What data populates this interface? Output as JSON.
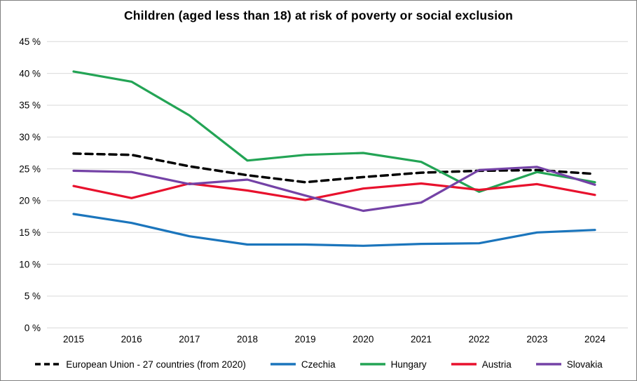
{
  "chart_data": {
    "type": "line",
    "title": "Children (aged less than 18) at risk of poverty or social exclusion",
    "categories": [
      "2015",
      "2016",
      "2017",
      "2018",
      "2019",
      "2020",
      "2021",
      "2022",
      "2023",
      "2024"
    ],
    "y_axis": {
      "min": 0,
      "max": 45,
      "step": 5,
      "unit": "%",
      "tick_labels": [
        "0 %",
        "5 %",
        "10 %",
        "15 %",
        "20 %",
        "25 %",
        "30 %",
        "35 %",
        "40 %",
        "45 %"
      ]
    },
    "grid": "horizontal",
    "gridline_color": "#d9d9d9",
    "axis_text_color": "#000000",
    "background": "#ffffff",
    "legend_position": "bottom",
    "series": [
      {
        "name": "European Union - 27 countries (from 2020)",
        "color": "#000000",
        "dashed": true,
        "values": [
          27.4,
          27.2,
          25.4,
          24.0,
          22.9,
          23.7,
          24.4,
          24.7,
          24.8,
          24.2
        ]
      },
      {
        "name": "Czechia",
        "color": "#1b75bc",
        "dashed": false,
        "values": [
          17.9,
          16.5,
          14.4,
          13.1,
          13.1,
          12.9,
          13.2,
          13.3,
          15.0,
          15.4
        ]
      },
      {
        "name": "Hungary",
        "color": "#23a455",
        "dashed": false,
        "values": [
          40.3,
          38.7,
          33.4,
          26.3,
          27.2,
          27.5,
          26.1,
          21.4,
          24.5,
          22.9
        ]
      },
      {
        "name": "Austria",
        "color": "#e8112d",
        "dashed": false,
        "values": [
          22.3,
          20.4,
          22.7,
          21.6,
          20.1,
          21.9,
          22.7,
          21.7,
          22.6,
          20.9
        ]
      },
      {
        "name": "Slovakia",
        "color": "#7442a6",
        "dashed": false,
        "values": [
          24.7,
          24.5,
          22.6,
          23.3,
          20.8,
          18.4,
          19.7,
          24.8,
          25.3,
          22.5
        ]
      }
    ]
  }
}
